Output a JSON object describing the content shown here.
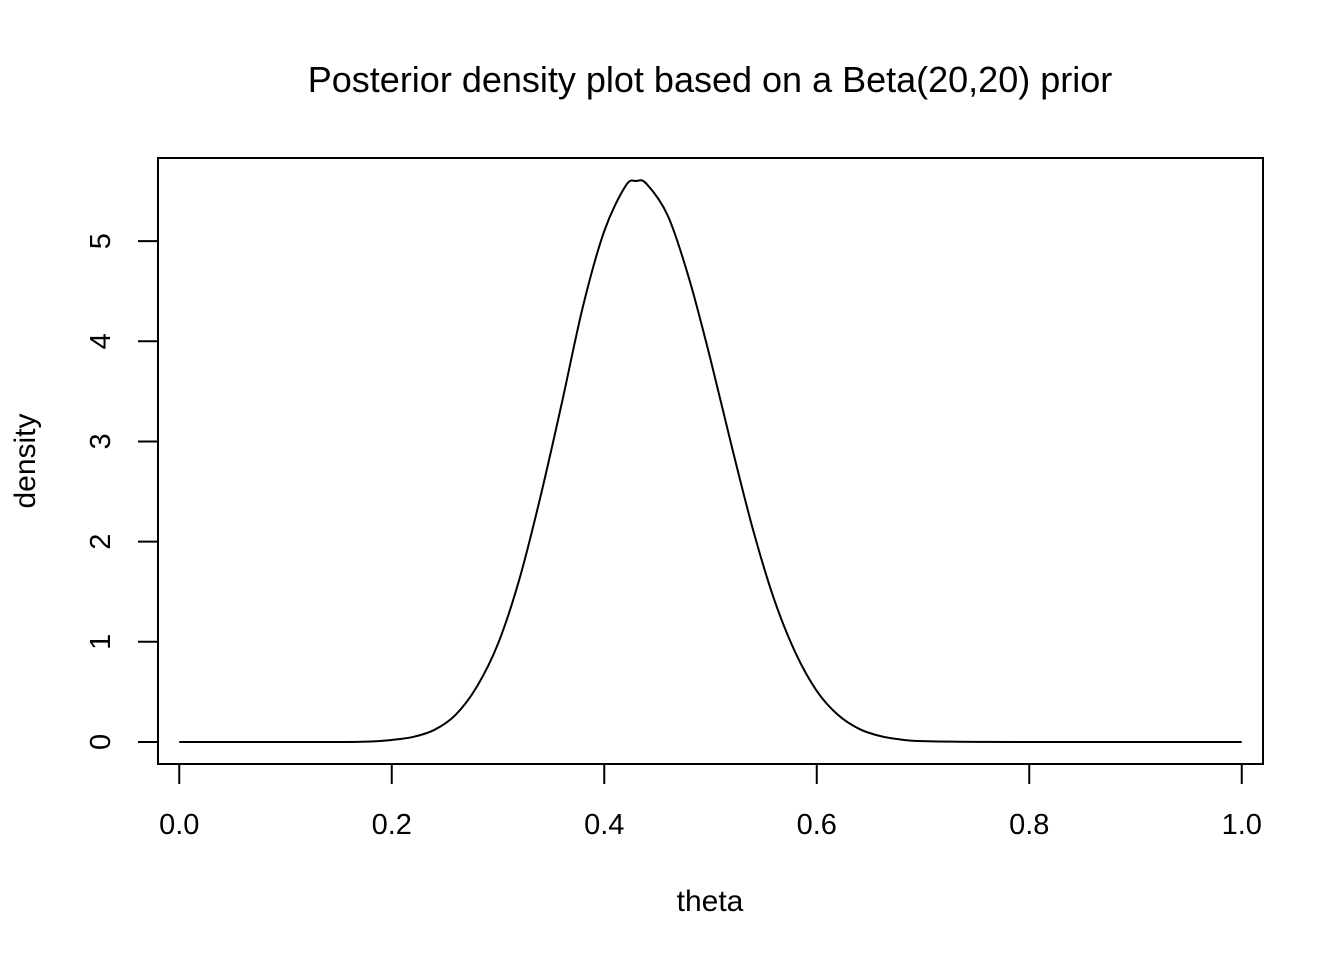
{
  "chart_data": {
    "type": "line",
    "title": "Posterior density plot based on a Beta(20,20) prior",
    "xlabel": "theta",
    "ylabel": "density",
    "xlim": [
      -0.02,
      1.02
    ],
    "ylim": [
      -0.22,
      5.83
    ],
    "x_ticks": [
      0.0,
      0.2,
      0.4,
      0.6,
      0.8,
      1.0
    ],
    "x_tick_labels": [
      "0.0",
      "0.2",
      "0.4",
      "0.6",
      "0.8",
      "1.0"
    ],
    "y_ticks": [
      0,
      1,
      2,
      3,
      4,
      5
    ],
    "y_tick_labels": [
      "0",
      "1",
      "2",
      "3",
      "4",
      "5"
    ],
    "grid": false,
    "legend": "none",
    "line_color": "#000000",
    "series": [
      {
        "x": [
          0.0,
          0.05,
          0.1,
          0.15,
          0.18,
          0.2,
          0.22,
          0.24,
          0.26,
          0.28,
          0.3,
          0.32,
          0.34,
          0.36,
          0.38,
          0.4,
          0.42,
          0.43,
          0.44,
          0.46,
          0.48,
          0.5,
          0.52,
          0.54,
          0.56,
          0.58,
          0.6,
          0.62,
          0.64,
          0.66,
          0.68,
          0.7,
          0.75,
          0.8,
          0.85,
          0.9,
          0.95,
          1.0
        ],
        "values": [
          0.0,
          0.0,
          0.0,
          0.0,
          0.005,
          0.02,
          0.05,
          0.12,
          0.27,
          0.55,
          0.98,
          1.62,
          2.45,
          3.38,
          4.35,
          5.1,
          5.55,
          5.6,
          5.57,
          5.25,
          4.62,
          3.82,
          2.95,
          2.12,
          1.42,
          0.89,
          0.51,
          0.27,
          0.13,
          0.058,
          0.023,
          0.008,
          0.0005,
          0.0,
          0.0,
          0.0,
          0.0,
          0.0
        ]
      }
    ]
  }
}
